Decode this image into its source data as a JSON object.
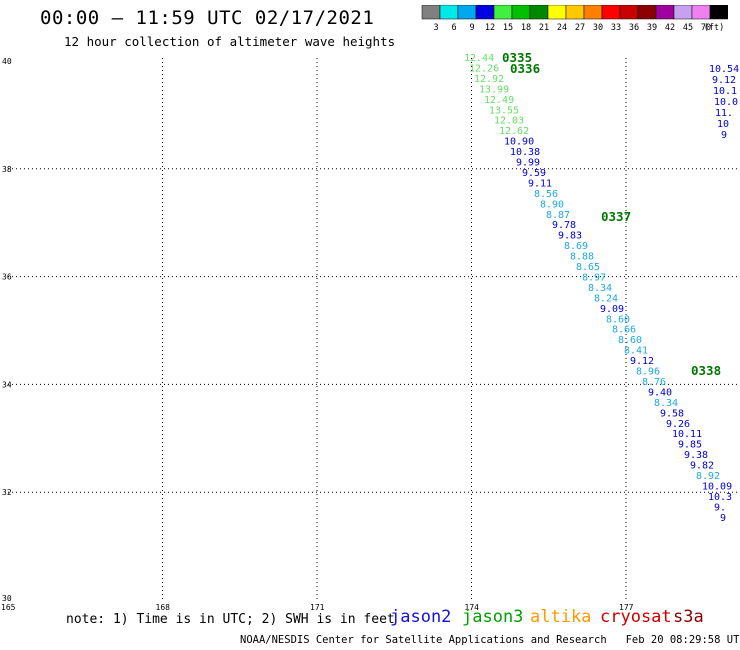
{
  "header": {
    "title": "00:00 — 11:59 UTC 02/17/2021",
    "subtitle": "12 hour collection of altimeter wave heights"
  },
  "color_scale": {
    "unit_label": "(ft)",
    "bins": [
      {
        "label": "3",
        "color": "#808080"
      },
      {
        "label": "6",
        "color": "#00e8e8"
      },
      {
        "label": "9",
        "color": "#00a8f0"
      },
      {
        "label": "12",
        "color": "#0000e0"
      },
      {
        "label": "15",
        "color": "#40f040"
      },
      {
        "label": "18",
        "color": "#00c000"
      },
      {
        "label": "21",
        "color": "#008800"
      },
      {
        "label": "24",
        "color": "#ffff00"
      },
      {
        "label": "27",
        "color": "#ffc800"
      },
      {
        "label": "30",
        "color": "#ff8000"
      },
      {
        "label": "33",
        "color": "#ff0000"
      },
      {
        "label": "36",
        "color": "#c80000"
      },
      {
        "label": "39",
        "color": "#8b0000"
      },
      {
        "label": "42",
        "color": "#a000a0"
      },
      {
        "label": "45",
        "color": "#c8a0f0"
      },
      {
        "label": "70",
        "color": "#f080f0"
      },
      {
        "label": "",
        "color": "#000000"
      }
    ]
  },
  "map": {
    "x_ticks": [
      "165",
      "168",
      "171",
      "174",
      "177"
    ],
    "y_ticks": [
      "40",
      "38",
      "36",
      "34",
      "32",
      "30"
    ]
  },
  "passes": [
    {
      "points": [
        {
          "text": "12.44",
          "color": "#66dd66"
        },
        {
          "text": "12.26",
          "color": "#66dd66"
        },
        {
          "text": "12.92",
          "color": "#66dd66"
        },
        {
          "text": "13.99",
          "color": "#66dd66"
        },
        {
          "text": "12.49",
          "color": "#66dd66"
        },
        {
          "text": "13.55",
          "color": "#66dd66"
        },
        {
          "text": "12.03",
          "color": "#66dd66"
        },
        {
          "text": "12.62",
          "color": "#66dd66"
        },
        {
          "text": "10.90",
          "color": "#0000cc"
        },
        {
          "text": "10.38",
          "color": "#0000cc"
        },
        {
          "text": "9.99",
          "color": "#0000cc"
        },
        {
          "text": "9.59",
          "color": "#0000cc"
        },
        {
          "text": "9.11",
          "color": "#0000cc"
        },
        {
          "text": "8.56",
          "color": "#1da8e0"
        },
        {
          "text": "8.90",
          "color": "#1da8e0"
        },
        {
          "text": "8.87",
          "color": "#1da8e0"
        },
        {
          "text": "9.78",
          "color": "#0000cc"
        },
        {
          "text": "9.83",
          "color": "#0000cc"
        },
        {
          "text": "8.69",
          "color": "#1da8e0"
        },
        {
          "text": "8.88",
          "color": "#1da8e0"
        },
        {
          "text": "8.65",
          "color": "#1da8e0"
        },
        {
          "text": "8.97",
          "color": "#1da8e0"
        },
        {
          "text": "8.34",
          "color": "#1da8e0"
        },
        {
          "text": "8.24",
          "color": "#1da8e0"
        },
        {
          "text": "9.09",
          "color": "#0000cc"
        },
        {
          "text": "8.60",
          "color": "#1da8e0"
        },
        {
          "text": "8.66",
          "color": "#1da8e0"
        },
        {
          "text": "8.60",
          "color": "#1da8e0"
        },
        {
          "text": "8.41",
          "color": "#1da8e0"
        },
        {
          "text": "9.12",
          "color": "#0000cc"
        },
        {
          "text": "8.96",
          "color": "#1da8e0"
        },
        {
          "text": "8.76",
          "color": "#1da8e0"
        },
        {
          "text": "9.40",
          "color": "#0000cc"
        },
        {
          "text": "8.34",
          "color": "#1da8e0"
        },
        {
          "text": "9.58",
          "color": "#0000cc"
        },
        {
          "text": "9.26",
          "color": "#0000cc"
        },
        {
          "text": "10.11",
          "color": "#0000cc"
        },
        {
          "text": "9.85",
          "color": "#0000cc"
        },
        {
          "text": "9.38",
          "color": "#0000cc"
        },
        {
          "text": "9.82",
          "color": "#0000cc"
        },
        {
          "text": "8.92",
          "color": "#1da8e0"
        },
        {
          "text": "10.09",
          "color": "#0000cc"
        },
        {
          "text": "10.3",
          "color": "#0000cc"
        },
        {
          "text": "9.",
          "color": "#0000cc"
        },
        {
          "text": "9",
          "color": "#0000cc"
        }
      ]
    },
    {
      "points": [
        {
          "text": "10.54",
          "color": "#0000cc"
        },
        {
          "text": "9.12",
          "color": "#0000cc"
        },
        {
          "text": "10.1",
          "color": "#0000cc"
        },
        {
          "text": "10.0",
          "color": "#0000cc"
        },
        {
          "text": "11.",
          "color": "#0000cc"
        },
        {
          "text": "10",
          "color": "#0000cc"
        },
        {
          "text": "9",
          "color": "#0000cc"
        }
      ]
    }
  ],
  "time_labels": [
    {
      "text": "0335",
      "color": "#007700"
    },
    {
      "text": "0336",
      "color": "#007700"
    },
    {
      "text": "0337",
      "color": "#007700"
    },
    {
      "text": "0338",
      "color": "#007700"
    }
  ],
  "footer": {
    "note": "note: 1) Time is in UTC; 2) SWH is in feet",
    "satellites": [
      {
        "name": "jason2",
        "color": "#1010e0"
      },
      {
        "name": "jason3",
        "color": "#00a000"
      },
      {
        "name": "altika",
        "color": "#ff9900"
      },
      {
        "name": "cryosat",
        "color": "#cc0000"
      },
      {
        "name": "s3a",
        "color": "#880000"
      }
    ],
    "credit": "NOAA/NESDIS Center for Satellite Applications and Research   Feb 20 08:29:58 UTC 2021"
  }
}
